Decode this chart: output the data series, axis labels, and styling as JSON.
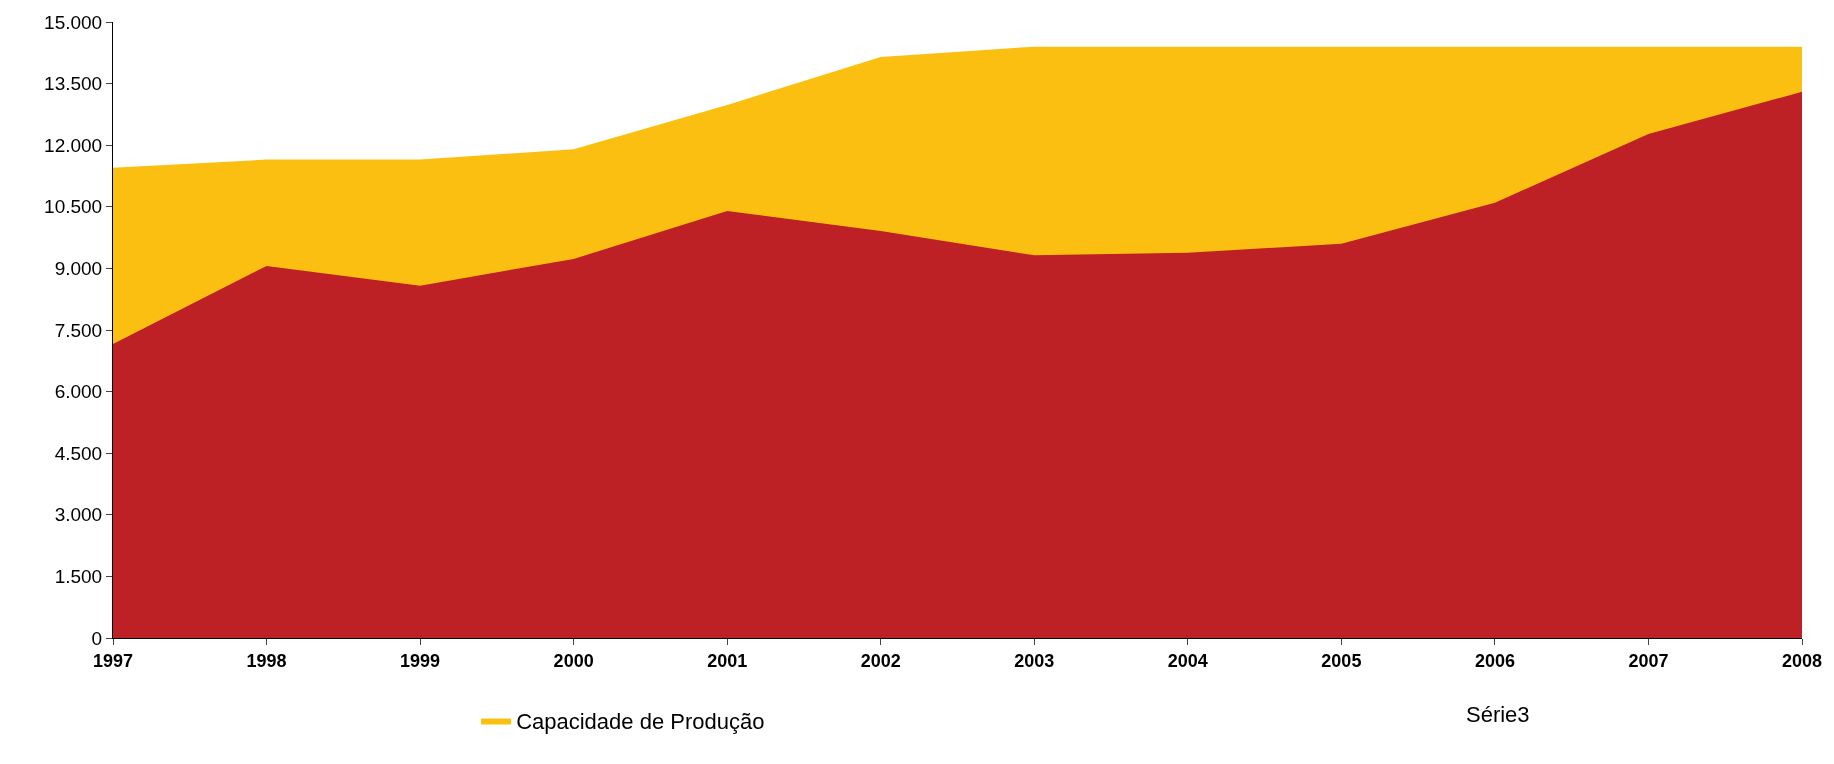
{
  "chart_data": {
    "type": "area",
    "x": [
      1997,
      1998,
      1999,
      2000,
      2001,
      2002,
      2003,
      2004,
      2005,
      2006,
      2007,
      2008
    ],
    "series": [
      {
        "name": "Capacidade de Produção",
        "color": "#fbbf12",
        "values": [
          11450,
          11650,
          11650,
          11900,
          12980,
          14150,
          14400,
          14400,
          14400,
          14400,
          14400,
          14400
        ]
      },
      {
        "color": "#bd2025",
        "values": [
          7160,
          9060,
          8580,
          9230,
          10400,
          9910,
          9320,
          9380,
          9600,
          10600,
          12270,
          13300
        ]
      }
    ],
    "annotations": [
      "Série3"
    ],
    "xlim": [
      1997,
      2008
    ],
    "xticks": [
      1997,
      1998,
      1999,
      2000,
      2001,
      2002,
      2003,
      2004,
      2005,
      2006,
      2007,
      2008
    ],
    "ylim": [
      0,
      15000
    ],
    "yticks": [
      0,
      {
        "value": 1500,
        "label": "1.500"
      },
      {
        "value": 3000,
        "label": "3.000"
      },
      {
        "value": 4500,
        "label": "4.500"
      },
      {
        "value": 6000,
        "label": "6.000"
      },
      {
        "value": 7500,
        "label": "7.500"
      },
      {
        "value": 9000,
        "label": "9.000"
      },
      {
        "value": 10500,
        "label": "10.500"
      },
      {
        "value": 12000,
        "label": "12.000"
      },
      {
        "value": 13500,
        "label": "13.500"
      },
      {
        "value": 15000,
        "label": "15.000"
      }
    ],
    "grid": false,
    "legend": "bottom"
  }
}
